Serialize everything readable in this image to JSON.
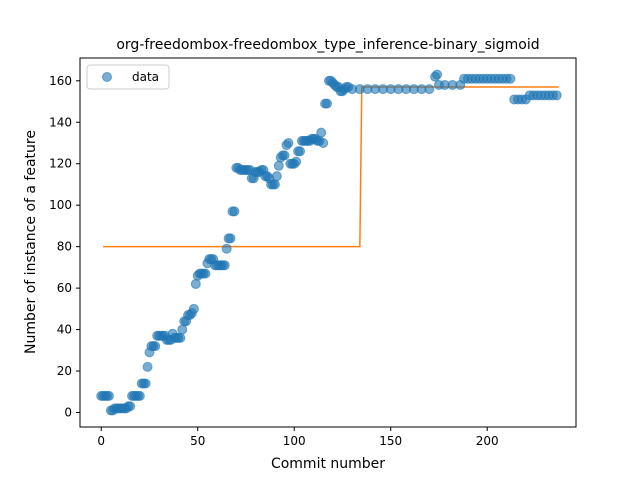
{
  "chart_data": {
    "type": "scatter",
    "title": "org-freedombox-freedombox_type_inference-binary_sigmoid",
    "xlabel": "Commit number",
    "ylabel": "Number of instance of a feature",
    "xlim": [
      -11,
      246
    ],
    "ylim": [
      -7,
      171
    ],
    "xticks": [
      0,
      50,
      100,
      150,
      200
    ],
    "yticks": [
      0,
      20,
      40,
      60,
      80,
      100,
      120,
      140,
      160
    ],
    "legend": {
      "position": "top-left",
      "entries": [
        "data"
      ]
    },
    "colors": {
      "data": "#1f77b4",
      "fit": "#ff7f0e"
    },
    "series": [
      {
        "name": "data",
        "kind": "scatter",
        "points": [
          [
            0,
            8
          ],
          [
            1,
            8
          ],
          [
            2,
            8
          ],
          [
            3,
            8
          ],
          [
            4,
            8
          ],
          [
            5,
            1
          ],
          [
            6,
            1
          ],
          [
            7,
            2
          ],
          [
            8,
            2
          ],
          [
            9,
            2
          ],
          [
            10,
            2
          ],
          [
            11,
            2
          ],
          [
            12,
            2
          ],
          [
            13,
            2
          ],
          [
            14,
            3
          ],
          [
            15,
            3
          ],
          [
            16,
            8
          ],
          [
            17,
            8
          ],
          [
            18,
            8
          ],
          [
            19,
            8
          ],
          [
            20,
            8
          ],
          [
            21,
            14
          ],
          [
            22,
            14
          ],
          [
            23,
            14
          ],
          [
            24,
            22
          ],
          [
            25,
            29
          ],
          [
            26,
            32
          ],
          [
            27,
            32
          ],
          [
            28,
            32
          ],
          [
            29,
            37
          ],
          [
            30,
            37
          ],
          [
            31,
            37
          ],
          [
            32,
            37
          ],
          [
            33,
            37
          ],
          [
            34,
            35
          ],
          [
            35,
            35
          ],
          [
            36,
            35
          ],
          [
            37,
            38
          ],
          [
            38,
            36
          ],
          [
            39,
            36
          ],
          [
            40,
            36
          ],
          [
            41,
            36
          ],
          [
            42,
            40
          ],
          [
            43,
            44
          ],
          [
            44,
            44
          ],
          [
            45,
            47
          ],
          [
            46,
            47
          ],
          [
            47,
            48
          ],
          [
            48,
            50
          ],
          [
            49,
            62
          ],
          [
            50,
            66
          ],
          [
            51,
            67
          ],
          [
            52,
            67
          ],
          [
            53,
            67
          ],
          [
            54,
            67
          ],
          [
            55,
            72
          ],
          [
            56,
            74
          ],
          [
            57,
            74
          ],
          [
            58,
            74
          ],
          [
            59,
            71
          ],
          [
            60,
            71
          ],
          [
            61,
            71
          ],
          [
            62,
            71
          ],
          [
            63,
            71
          ],
          [
            64,
            71
          ],
          [
            65,
            79
          ],
          [
            66,
            84
          ],
          [
            67,
            84
          ],
          [
            68,
            97
          ],
          [
            69,
            97
          ],
          [
            70,
            118
          ],
          [
            71,
            118
          ],
          [
            72,
            117
          ],
          [
            73,
            117
          ],
          [
            74,
            117
          ],
          [
            75,
            117
          ],
          [
            76,
            117
          ],
          [
            77,
            117
          ],
          [
            78,
            113
          ],
          [
            79,
            113
          ],
          [
            80,
            116
          ],
          [
            81,
            116
          ],
          [
            82,
            116
          ],
          [
            83,
            117
          ],
          [
            84,
            117
          ],
          [
            85,
            114
          ],
          [
            86,
            114
          ],
          [
            87,
            113
          ],
          [
            88,
            110
          ],
          [
            89,
            110
          ],
          [
            90,
            110
          ],
          [
            91,
            114
          ],
          [
            92,
            119
          ],
          [
            93,
            123
          ],
          [
            94,
            124
          ],
          [
            95,
            124
          ],
          [
            96,
            129
          ],
          [
            97,
            130
          ],
          [
            98,
            120
          ],
          [
            99,
            120
          ],
          [
            100,
            120
          ],
          [
            101,
            121
          ],
          [
            102,
            126
          ],
          [
            103,
            126
          ],
          [
            104,
            131
          ],
          [
            105,
            131
          ],
          [
            106,
            131
          ],
          [
            107,
            131
          ],
          [
            108,
            131
          ],
          [
            109,
            132
          ],
          [
            110,
            132
          ],
          [
            111,
            132
          ],
          [
            112,
            131
          ],
          [
            113,
            131
          ],
          [
            114,
            135
          ],
          [
            115,
            130
          ],
          [
            116,
            149
          ],
          [
            117,
            149
          ],
          [
            118,
            160
          ],
          [
            119,
            160
          ],
          [
            120,
            159
          ],
          [
            121,
            158
          ],
          [
            122,
            157
          ],
          [
            123,
            157
          ],
          [
            124,
            155
          ],
          [
            125,
            155
          ],
          [
            126,
            156
          ],
          [
            127,
            157
          ],
          [
            128,
            157
          ],
          [
            130,
            156
          ],
          [
            134,
            156
          ],
          [
            138,
            156
          ],
          [
            142,
            156
          ],
          [
            146,
            156
          ],
          [
            150,
            156
          ],
          [
            154,
            156
          ],
          [
            158,
            156
          ],
          [
            162,
            156
          ],
          [
            166,
            156
          ],
          [
            170,
            156
          ],
          [
            173,
            162
          ],
          [
            174,
            163
          ],
          [
            175,
            158
          ],
          [
            178,
            158
          ],
          [
            182,
            158
          ],
          [
            186,
            158
          ],
          [
            188,
            161
          ],
          [
            190,
            161
          ],
          [
            192,
            161
          ],
          [
            194,
            161
          ],
          [
            196,
            161
          ],
          [
            198,
            161
          ],
          [
            200,
            161
          ],
          [
            202,
            161
          ],
          [
            204,
            161
          ],
          [
            206,
            161
          ],
          [
            208,
            161
          ],
          [
            210,
            161
          ],
          [
            212,
            161
          ],
          [
            214,
            151
          ],
          [
            216,
            151
          ],
          [
            218,
            151
          ],
          [
            220,
            151
          ],
          [
            222,
            153
          ],
          [
            224,
            153
          ],
          [
            226,
            153
          ],
          [
            228,
            153
          ],
          [
            230,
            153
          ],
          [
            232,
            153
          ],
          [
            234,
            153
          ],
          [
            236,
            153
          ]
        ]
      },
      {
        "name": "",
        "kind": "line",
        "points": [
          [
            1,
            80
          ],
          [
            134,
            80
          ],
          [
            135,
            157
          ],
          [
            237,
            157
          ]
        ]
      }
    ]
  }
}
